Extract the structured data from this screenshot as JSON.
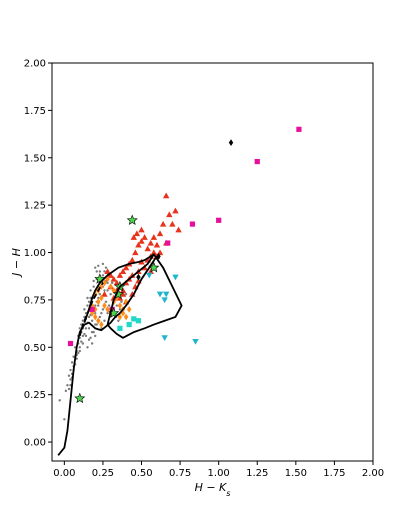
{
  "chart_data": {
    "type": "scatter",
    "xlim": [
      -0.08,
      2.0
    ],
    "ylim": [
      -0.1,
      2.0
    ],
    "xlabel": "H − K",
    "xlabel_sub": "s",
    "ylabel": "J − H",
    "xticks": [
      0.0,
      0.25,
      0.5,
      0.75,
      1.0,
      1.25,
      1.5,
      1.75,
      2.0
    ],
    "xtick_labels": [
      "0.00",
      "0.25",
      "0.50",
      "0.75",
      "1.00",
      "1.25",
      "1.50",
      "1.75",
      "2.00"
    ],
    "yticks": [
      0.0,
      0.25,
      0.5,
      0.75,
      1.0,
      1.25,
      1.5,
      1.75,
      2.0
    ],
    "ytick_labels": [
      "0.00",
      "0.25",
      "0.50",
      "0.75",
      "1.00",
      "1.25",
      "1.50",
      "1.75",
      "2.00"
    ],
    "grid": false,
    "colors": {
      "field": "#7a7a7a",
      "red_triangle": "#e8331c",
      "orange_diamond": "#ff8c1a",
      "magenta_square": "#e6109c",
      "cyan_triangle_down": "#1fb5cc",
      "cyan_square": "#1fd8c8",
      "green_star": "#4cd64c",
      "black_diamond": "#000000",
      "line": "#000000"
    },
    "series": [
      {
        "marker": "dot",
        "color_key": "field",
        "points": [
          [
            0.03,
            0.35
          ],
          [
            0.04,
            0.3
          ],
          [
            0.05,
            0.34
          ],
          [
            0.06,
            0.4
          ],
          [
            0.07,
            0.45
          ],
          [
            0.08,
            0.48
          ],
          [
            0.09,
            0.52
          ],
          [
            0.1,
            0.55
          ],
          [
            0.11,
            0.58
          ],
          [
            0.12,
            0.6
          ],
          [
            0.13,
            0.62
          ],
          [
            0.14,
            0.65
          ],
          [
            0.15,
            0.68
          ],
          [
            0.16,
            0.7
          ],
          [
            0.17,
            0.72
          ],
          [
            0.18,
            0.74
          ],
          [
            0.19,
            0.76
          ],
          [
            0.2,
            0.78
          ],
          [
            0.21,
            0.8
          ],
          [
            0.22,
            0.82
          ],
          [
            0.23,
            0.84
          ],
          [
            0.24,
            0.86
          ],
          [
            0.25,
            0.88
          ],
          [
            0.26,
            0.9
          ],
          [
            0.27,
            0.85
          ],
          [
            0.28,
            0.8
          ],
          [
            0.3,
            0.78
          ],
          [
            0.32,
            0.75
          ],
          [
            0.34,
            0.72
          ],
          [
            0.36,
            0.7
          ],
          [
            0.05,
            0.42
          ],
          [
            0.07,
            0.5
          ],
          [
            0.09,
            0.56
          ],
          [
            0.11,
            0.62
          ],
          [
            0.13,
            0.66
          ],
          [
            0.15,
            0.72
          ],
          [
            0.17,
            0.76
          ],
          [
            0.19,
            0.82
          ],
          [
            0.21,
            0.86
          ],
          [
            0.23,
            0.9
          ],
          [
            0.12,
            0.52
          ],
          [
            0.14,
            0.56
          ],
          [
            0.16,
            0.6
          ],
          [
            0.18,
            0.64
          ],
          [
            0.2,
            0.68
          ],
          [
            0.22,
            0.72
          ],
          [
            0.24,
            0.76
          ],
          [
            0.26,
            0.8
          ],
          [
            0.28,
            0.84
          ],
          [
            0.1,
            0.48
          ],
          [
            0.08,
            0.44
          ],
          [
            0.06,
            0.38
          ],
          [
            0.04,
            0.33
          ],
          [
            0.15,
            0.5
          ],
          [
            0.17,
            0.55
          ],
          [
            0.19,
            0.58
          ],
          [
            0.21,
            0.62
          ],
          [
            0.23,
            0.66
          ],
          [
            0.25,
            0.7
          ],
          [
            0.27,
            0.74
          ],
          [
            0.29,
            0.72
          ],
          [
            0.31,
            0.68
          ],
          [
            0.33,
            0.66
          ],
          [
            0.35,
            0.64
          ],
          [
            0.02,
            0.3
          ],
          [
            0.03,
            0.28
          ],
          [
            0.05,
            0.36
          ],
          [
            0.07,
            0.41
          ],
          [
            0.09,
            0.47
          ],
          [
            0.11,
            0.53
          ],
          [
            0.13,
            0.57
          ],
          [
            0.15,
            0.63
          ],
          [
            0.17,
            0.67
          ],
          [
            0.19,
            0.7
          ],
          [
            0.21,
            0.74
          ],
          [
            0.23,
            0.78
          ],
          [
            0.25,
            0.82
          ],
          [
            0.14,
            0.6
          ],
          [
            0.16,
            0.66
          ],
          [
            0.18,
            0.68
          ],
          [
            0.2,
            0.72
          ],
          [
            0.22,
            0.76
          ],
          [
            0.18,
            0.58
          ],
          [
            0.2,
            0.62
          ],
          [
            0.22,
            0.64
          ],
          [
            0.24,
            0.68
          ],
          [
            0.26,
            0.72
          ],
          [
            0.12,
            0.56
          ],
          [
            0.1,
            0.5
          ],
          [
            0.08,
            0.46
          ],
          [
            0.16,
            0.54
          ],
          [
            0.18,
            0.52
          ],
          [
            0.2,
            0.56
          ],
          [
            0.24,
            0.6
          ],
          [
            0.26,
            0.64
          ],
          [
            0.28,
            0.68
          ],
          [
            0.3,
            0.7
          ],
          [
            0.13,
            0.7
          ],
          [
            0.15,
            0.76
          ],
          [
            0.17,
            0.8
          ],
          [
            0.19,
            0.85
          ],
          [
            0.21,
            0.9
          ],
          [
            0.22,
            0.93
          ],
          [
            0.2,
            0.92
          ],
          [
            0.06,
            0.45
          ],
          [
            0.04,
            0.38
          ],
          [
            0.1,
            0.6
          ],
          [
            0.12,
            0.64
          ],
          [
            0.14,
            0.68
          ],
          [
            0.16,
            0.74
          ],
          [
            0.27,
            0.92
          ],
          [
            0.25,
            0.94
          ],
          [
            0.29,
            0.88
          ],
          [
            0.31,
            0.84
          ],
          [
            0.33,
            0.8
          ],
          [
            0.0,
            0.12
          ],
          [
            -0.03,
            0.22
          ],
          [
            0.01,
            0.27
          ],
          [
            0.35,
            0.76
          ],
          [
            0.37,
            0.74
          ],
          [
            0.4,
            0.78
          ]
        ]
      },
      {
        "marker": "triangle-up",
        "color_key": "red_triangle",
        "points": [
          [
            0.28,
            0.9
          ],
          [
            0.3,
            0.88
          ],
          [
            0.32,
            0.86
          ],
          [
            0.34,
            0.84
          ],
          [
            0.36,
            0.88
          ],
          [
            0.38,
            0.9
          ],
          [
            0.4,
            0.92
          ],
          [
            0.42,
            0.94
          ],
          [
            0.44,
            0.96
          ],
          [
            0.46,
            1.0
          ],
          [
            0.48,
            1.04
          ],
          [
            0.5,
            1.06
          ],
          [
            0.52,
            1.08
          ],
          [
            0.54,
            1.02
          ],
          [
            0.56,
            1.05
          ],
          [
            0.58,
            1.0
          ],
          [
            0.6,
            1.04
          ],
          [
            0.62,
            1.1
          ],
          [
            0.64,
            1.15
          ],
          [
            0.66,
            1.3
          ],
          [
            0.68,
            1.2
          ],
          [
            0.7,
            1.15
          ],
          [
            0.72,
            1.22
          ],
          [
            0.74,
            1.12
          ],
          [
            0.34,
            0.8
          ],
          [
            0.36,
            0.82
          ],
          [
            0.38,
            0.78
          ],
          [
            0.4,
            0.74
          ],
          [
            0.42,
            0.86
          ],
          [
            0.44,
            0.88
          ],
          [
            0.46,
            0.82
          ],
          [
            0.48,
            0.9
          ],
          [
            0.5,
            0.95
          ],
          [
            0.52,
            0.92
          ],
          [
            0.54,
            0.96
          ],
          [
            0.56,
            0.98
          ],
          [
            0.58,
            1.08
          ],
          [
            0.6,
            0.98
          ],
          [
            0.3,
            0.82
          ],
          [
            0.32,
            0.76
          ],
          [
            0.26,
            0.78
          ],
          [
            0.44,
            0.78
          ],
          [
            0.48,
            0.85
          ],
          [
            0.56,
            0.9
          ],
          [
            0.62,
            1.0
          ],
          [
            0.66,
            1.05
          ],
          [
            0.4,
            0.84
          ],
          [
            0.38,
            0.8
          ],
          [
            0.36,
            0.76
          ],
          [
            0.45,
            1.08
          ],
          [
            0.47,
            1.1
          ],
          [
            0.5,
            1.12
          ]
        ]
      },
      {
        "marker": "diamond",
        "color_key": "orange_diamond",
        "points": [
          [
            0.18,
            0.72
          ],
          [
            0.2,
            0.7
          ],
          [
            0.22,
            0.74
          ],
          [
            0.24,
            0.76
          ],
          [
            0.26,
            0.72
          ],
          [
            0.28,
            0.7
          ],
          [
            0.3,
            0.68
          ],
          [
            0.32,
            0.74
          ],
          [
            0.34,
            0.76
          ],
          [
            0.36,
            0.72
          ],
          [
            0.38,
            0.7
          ],
          [
            0.4,
            0.74
          ],
          [
            0.2,
            0.78
          ],
          [
            0.22,
            0.8
          ],
          [
            0.24,
            0.82
          ],
          [
            0.26,
            0.84
          ],
          [
            0.28,
            0.86
          ],
          [
            0.3,
            0.82
          ],
          [
            0.32,
            0.8
          ],
          [
            0.34,
            0.78
          ],
          [
            0.36,
            0.66
          ],
          [
            0.38,
            0.68
          ],
          [
            0.4,
            0.66
          ],
          [
            0.18,
            0.68
          ],
          [
            0.2,
            0.66
          ],
          [
            0.22,
            0.64
          ],
          [
            0.24,
            0.62
          ],
          [
            0.42,
            0.7
          ]
        ]
      },
      {
        "marker": "square",
        "color_key": "magenta_square",
        "points": [
          [
            0.04,
            0.52
          ],
          [
            0.18,
            0.7
          ],
          [
            0.31,
            0.7
          ],
          [
            0.67,
            1.05
          ],
          [
            0.83,
            1.15
          ],
          [
            1.0,
            1.17
          ],
          [
            1.25,
            1.48
          ],
          [
            1.52,
            1.65
          ]
        ]
      },
      {
        "marker": "triangle-down",
        "color_key": "cyan_triangle_down",
        "points": [
          [
            0.55,
            0.88
          ],
          [
            0.62,
            0.78
          ],
          [
            0.65,
            0.75
          ],
          [
            0.66,
            0.78
          ],
          [
            0.72,
            0.87
          ],
          [
            0.65,
            0.55
          ],
          [
            0.85,
            0.53
          ]
        ]
      },
      {
        "marker": "square",
        "color_key": "cyan_square",
        "points": [
          [
            0.36,
            0.6
          ],
          [
            0.45,
            0.65
          ],
          [
            0.48,
            0.64
          ],
          [
            0.42,
            0.62
          ]
        ]
      },
      {
        "marker": "star",
        "color_key": "green_star",
        "points": [
          [
            0.1,
            0.23
          ],
          [
            0.23,
            0.86
          ],
          [
            0.32,
            0.68
          ],
          [
            0.35,
            0.78
          ],
          [
            0.36,
            0.82
          ],
          [
            0.44,
            1.17
          ],
          [
            0.58,
            0.92
          ]
        ]
      },
      {
        "marker": "diamond",
        "color_key": "black_diamond",
        "points": [
          [
            0.48,
            0.87
          ],
          [
            0.61,
            0.98
          ],
          [
            1.08,
            1.58
          ]
        ]
      }
    ],
    "lines": [
      {
        "style": "solid",
        "points": [
          [
            -0.04,
            -0.07
          ],
          [
            0.0,
            -0.03
          ],
          [
            0.02,
            0.06
          ],
          [
            0.04,
            0.22
          ],
          [
            0.06,
            0.38
          ],
          [
            0.08,
            0.5
          ],
          [
            0.1,
            0.58
          ],
          [
            0.13,
            0.62
          ],
          [
            0.16,
            0.63
          ],
          [
            0.2,
            0.6
          ],
          [
            0.24,
            0.59
          ],
          [
            0.27,
            0.61
          ],
          [
            0.3,
            0.63
          ],
          [
            0.33,
            0.66
          ],
          [
            0.36,
            0.68
          ],
          [
            0.4,
            0.72
          ],
          [
            0.45,
            0.78
          ],
          [
            0.5,
            0.86
          ],
          [
            0.55,
            0.92
          ],
          [
            0.59,
            0.97
          ]
        ]
      },
      {
        "style": "solid",
        "points": [
          [
            0.13,
            0.63
          ],
          [
            0.16,
            0.7
          ],
          [
            0.18,
            0.76
          ],
          [
            0.2,
            0.8
          ],
          [
            0.23,
            0.84
          ],
          [
            0.28,
            0.88
          ],
          [
            0.35,
            0.92
          ],
          [
            0.42,
            0.94
          ],
          [
            0.48,
            0.95
          ],
          [
            0.52,
            0.96
          ],
          [
            0.58,
            0.99
          ]
        ]
      },
      {
        "style": "solid",
        "points": [
          [
            0.28,
            0.62
          ],
          [
            0.32,
            0.75
          ],
          [
            0.36,
            0.82
          ],
          [
            0.42,
            0.86
          ],
          [
            0.48,
            0.9
          ],
          [
            0.54,
            0.94
          ],
          [
            0.58,
            0.99
          ],
          [
            0.64,
            0.92
          ],
          [
            0.7,
            0.82
          ],
          [
            0.76,
            0.72
          ],
          [
            0.72,
            0.66
          ],
          [
            0.65,
            0.64
          ],
          [
            0.58,
            0.62
          ],
          [
            0.52,
            0.6
          ],
          [
            0.45,
            0.58
          ],
          [
            0.38,
            0.55
          ],
          [
            0.34,
            0.57
          ],
          [
            0.3,
            0.6
          ],
          [
            0.28,
            0.62
          ]
        ]
      },
      {
        "style": "dashed",
        "points": [
          [
            0.1,
            0.56
          ],
          [
            0.12,
            0.62
          ],
          [
            0.15,
            0.68
          ],
          [
            0.18,
            0.74
          ],
          [
            0.22,
            0.8
          ],
          [
            0.25,
            0.84
          ]
        ]
      }
    ]
  }
}
